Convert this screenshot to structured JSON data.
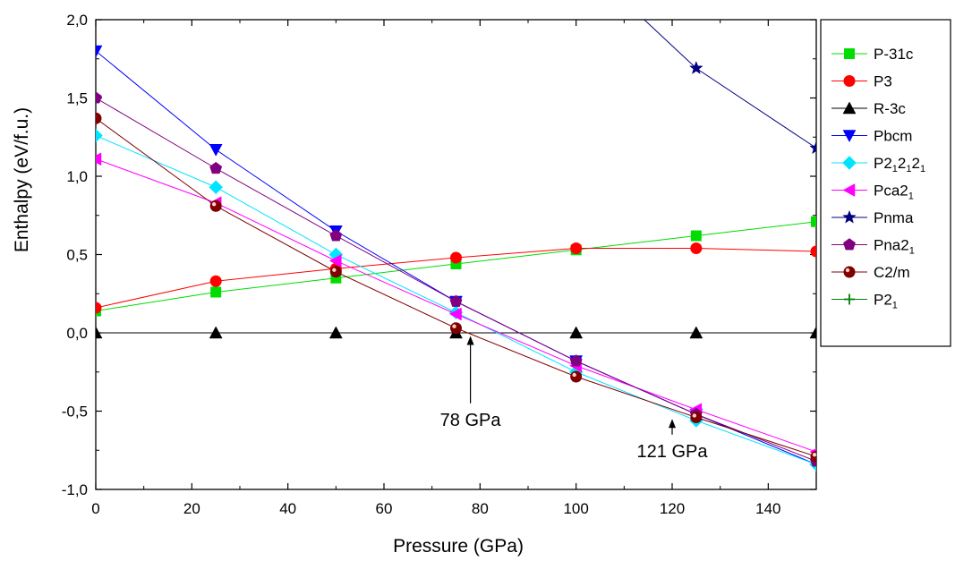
{
  "chart_data": {
    "type": "line",
    "xlabel": "Pressure (GPa)",
    "ylabel": "Enthalpy (eV/f.u.)",
    "xlim": [
      0,
      150
    ],
    "ylim": [
      -1.0,
      2.0
    ],
    "xticks": [
      0,
      20,
      40,
      60,
      80,
      100,
      120,
      140
    ],
    "xtick_labels": [
      "0",
      "20",
      "40",
      "60",
      "80",
      "100",
      "120",
      "140"
    ],
    "yticks": [
      -1.0,
      -0.5,
      0.0,
      0.5,
      1.0,
      1.5,
      2.0
    ],
    "ytick_labels": [
      "-1,0",
      "-0,5",
      "0,0",
      "0,5",
      "1,0",
      "1,5",
      "2,0"
    ],
    "grid": false,
    "legend_position": "right",
    "x": [
      0,
      25,
      50,
      75,
      100,
      125,
      150
    ],
    "series": [
      {
        "name": "P-31c",
        "legend_main": "P-31c",
        "legend_sub": [],
        "color": "#00dd00",
        "marker": "square",
        "values": [
          0.14,
          0.26,
          0.35,
          0.44,
          0.53,
          0.62,
          0.71
        ]
      },
      {
        "name": "P3",
        "legend_main": "P3",
        "legend_sub": [],
        "color": "#ff0000",
        "marker": "circle",
        "values": [
          0.16,
          0.33,
          0.41,
          0.48,
          0.54,
          0.54,
          0.52
        ]
      },
      {
        "name": "R-3c",
        "legend_main": "R-3c",
        "legend_sub": [],
        "color": "#000000",
        "marker": "triangle-up",
        "values": [
          0.0,
          0.0,
          0.0,
          0.0,
          0.0,
          0.0,
          0.0
        ]
      },
      {
        "name": "Pbcm",
        "legend_main": "Pbcm",
        "legend_sub": [],
        "color": "#0000ff",
        "marker": "triangle-down",
        "values": [
          1.8,
          1.17,
          0.65,
          0.2,
          -0.18,
          -0.52,
          -0.84
        ]
      },
      {
        "name": "P2₁2₁2₁",
        "legend_main": "P2",
        "legend_sub": [
          "1",
          "2",
          "2",
          "1"
        ],
        "color": "#00e5ff",
        "marker": "diamond",
        "values": [
          1.26,
          0.93,
          0.5,
          0.13,
          -0.25,
          -0.56,
          -0.84
        ]
      },
      {
        "name": "Pca2₁",
        "legend_main": "Pca2",
        "legend_sub": [
          "1"
        ],
        "color": "#ff00ff",
        "marker": "triangle-left",
        "values": [
          1.11,
          0.83,
          0.46,
          0.12,
          -0.21,
          -0.49,
          -0.76
        ]
      },
      {
        "name": "Pnma",
        "legend_main": "Pnma",
        "legend_sub": [],
        "color": "#000080",
        "marker": "star",
        "values": [
          null,
          null,
          null,
          null,
          null,
          1.69,
          1.18
        ],
        "lead_in": [
          {
            "x": 110,
            "y": 2.12
          }
        ]
      },
      {
        "name": "Pna2₁",
        "legend_main": "Pna2",
        "legend_sub": [
          "1"
        ],
        "color": "#800080",
        "marker": "pentagon",
        "values": [
          1.5,
          1.05,
          0.62,
          0.2,
          -0.18,
          -0.52,
          -0.82
        ]
      },
      {
        "name": "C2/m",
        "legend_main": "C2/m",
        "legend_sub": [],
        "color": "#800000",
        "marker": "ball",
        "values": [
          1.37,
          0.81,
          0.39,
          0.03,
          -0.28,
          -0.54,
          -0.79
        ]
      },
      {
        "name": "P2₁",
        "legend_main": "P2",
        "legend_sub": [
          "1"
        ],
        "color": "#008000",
        "marker": "plus",
        "values": [
          null,
          null,
          null,
          null,
          null,
          null,
          null
        ]
      }
    ],
    "annotations": [
      {
        "text": "78 GPa",
        "x": 78,
        "y_tip": -0.02,
        "y_tail": -0.45
      },
      {
        "text": "121 GPa",
        "x": 120,
        "y_tip": -0.55,
        "y_tail": -0.65
      }
    ]
  }
}
